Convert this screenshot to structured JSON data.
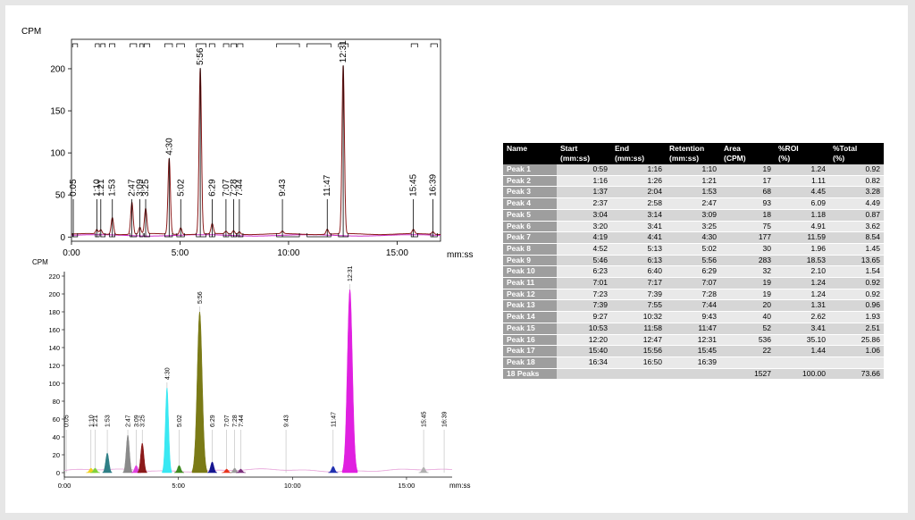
{
  "chart_data": [
    {
      "type": "line",
      "title": "",
      "ylabel": "CPM",
      "xlabel": "mm:ss",
      "xlim": [
        0,
        17
      ],
      "ylim": [
        -5,
        235
      ],
      "xticks": [
        {
          "v": 0,
          "label": "0:00"
        },
        {
          "v": 5,
          "label": "5:00"
        },
        {
          "v": 10,
          "label": "10:00"
        },
        {
          "v": 15,
          "label": "15:00"
        }
      ],
      "yticks": [
        0,
        50,
        100,
        150,
        200
      ],
      "colors": {
        "trace": "#8b1a1a",
        "baseline": "#cc33cc",
        "markers": "#000000"
      },
      "peaks": [
        {
          "label": "0:05",
          "t": 0.083,
          "h": 0
        },
        {
          "label": "1:10",
          "t": 1.167,
          "h": 5
        },
        {
          "label": "1:21",
          "t": 1.35,
          "h": 5
        },
        {
          "label": "1:53",
          "t": 1.883,
          "h": 20
        },
        {
          "label": "2:47",
          "t": 2.783,
          "h": 38
        },
        {
          "label": "3:09",
          "t": 3.15,
          "h": 8
        },
        {
          "label": "3:25",
          "t": 3.417,
          "h": 30
        },
        {
          "label": "4:30",
          "t": 4.5,
          "h": 90
        },
        {
          "label": "5:02",
          "t": 5.033,
          "h": 8
        },
        {
          "label": "5:56",
          "t": 5.933,
          "h": 197
        },
        {
          "label": "6:29",
          "t": 6.483,
          "h": 12
        },
        {
          "label": "7:07",
          "t": 7.117,
          "h": 3
        },
        {
          "label": "7:28",
          "t": 7.467,
          "h": 4
        },
        {
          "label": "7:44",
          "t": 7.733,
          "h": 3
        },
        {
          "label": "9:43",
          "t": 9.717,
          "h": 3
        },
        {
          "label": "11:47",
          "t": 11.783,
          "h": 6
        },
        {
          "label": "12:31",
          "t": 12.517,
          "h": 200
        },
        {
          "label": "15:45",
          "t": 15.75,
          "h": 5
        },
        {
          "label": "16:39",
          "t": 16.65,
          "h": 3
        }
      ]
    },
    {
      "type": "area",
      "title": "",
      "ylabel": "CPM",
      "xlabel": "mm:ss",
      "xlim": [
        0,
        17
      ],
      "ylim": [
        -5,
        225
      ],
      "xticks": [
        {
          "v": 0,
          "label": "0:00"
        },
        {
          "v": 5,
          "label": "5:00"
        },
        {
          "v": 10,
          "label": "10:00"
        },
        {
          "v": 15,
          "label": "15:00"
        }
      ],
      "yticks": [
        0,
        20,
        40,
        60,
        80,
        100,
        120,
        140,
        160,
        180,
        200,
        220
      ],
      "peaks": [
        {
          "label": "0:05",
          "t": 0.083,
          "h": 0,
          "color": "#bbbbbb"
        },
        {
          "label": "1:10",
          "t": 1.167,
          "h": 5,
          "color": "#f2d21e"
        },
        {
          "label": "1:21",
          "t": 1.35,
          "h": 5,
          "color": "#7fd13b"
        },
        {
          "label": "1:53",
          "t": 1.883,
          "h": 22,
          "color": "#2f7f86"
        },
        {
          "label": "2:47",
          "t": 2.783,
          "h": 42,
          "color": "#8a8a8a"
        },
        {
          "label": "3:09",
          "t": 3.15,
          "h": 8,
          "color": "#e040e0"
        },
        {
          "label": "3:25",
          "t": 3.417,
          "h": 33,
          "color": "#8b1a1a"
        },
        {
          "label": "4:30",
          "t": 4.5,
          "h": 95,
          "color": "#39e8f2"
        },
        {
          "label": "5:02",
          "t": 5.033,
          "h": 8,
          "color": "#3e8a1f"
        },
        {
          "label": "5:56",
          "t": 5.933,
          "h": 180,
          "color": "#7a7a16"
        },
        {
          "label": "6:29",
          "t": 6.483,
          "h": 12,
          "color": "#151590"
        },
        {
          "label": "7:07",
          "t": 7.117,
          "h": 4,
          "color": "#e8341c"
        },
        {
          "label": "7:28",
          "t": 7.467,
          "h": 5,
          "color": "#9a9a9a"
        },
        {
          "label": "7:44",
          "t": 7.733,
          "h": 4,
          "color": "#7b2f7b"
        },
        {
          "label": "9:43",
          "t": 9.717,
          "h": 0,
          "color": "#bbbbbb"
        },
        {
          "label": "11:47",
          "t": 11.783,
          "h": 7,
          "color": "#2030b0"
        },
        {
          "label": "12:31",
          "t": 12.517,
          "h": 205,
          "color": "#e020e0"
        },
        {
          "label": "15:45",
          "t": 15.75,
          "h": 6,
          "color": "#b0b0b0"
        },
        {
          "label": "16:39",
          "t": 16.65,
          "h": 0,
          "color": "#bbbbbb"
        }
      ]
    },
    {
      "type": "table",
      "columns": [
        "Name",
        "Start\n(mm:ss)",
        "End\n(mm:ss)",
        "Retention\n(mm:ss)",
        "Area\n(CPM)",
        "%ROI\n(%)",
        "%Total\n(%)"
      ],
      "rows": [
        [
          "Peak 1",
          "0:59",
          "1:16",
          "1:10",
          "19",
          "1.24",
          "0.92"
        ],
        [
          "Peak 2",
          "1:16",
          "1:26",
          "1:21",
          "17",
          "1.11",
          "0.82"
        ],
        [
          "Peak 3",
          "1:37",
          "2:04",
          "1:53",
          "68",
          "4.45",
          "3.28"
        ],
        [
          "Peak 4",
          "2:37",
          "2:58",
          "2:47",
          "93",
          "6.09",
          "4.49"
        ],
        [
          "Peak 5",
          "3:04",
          "3:14",
          "3:09",
          "18",
          "1.18",
          "0.87"
        ],
        [
          "Peak 6",
          "3:20",
          "3:41",
          "3:25",
          "75",
          "4.91",
          "3.62"
        ],
        [
          "Peak 7",
          "4:19",
          "4:41",
          "4:30",
          "177",
          "11.59",
          "8.54"
        ],
        [
          "Peak 8",
          "4:52",
          "5:13",
          "5:02",
          "30",
          "1.96",
          "1.45"
        ],
        [
          "Peak 9",
          "5:46",
          "6:13",
          "5:56",
          "283",
          "18.53",
          "13.65"
        ],
        [
          "Peak 10",
          "6:23",
          "6:40",
          "6:29",
          "32",
          "2.10",
          "1.54"
        ],
        [
          "Peak 11",
          "7:01",
          "7:17",
          "7:07",
          "19",
          "1.24",
          "0.92"
        ],
        [
          "Peak 12",
          "7:23",
          "7:39",
          "7:28",
          "19",
          "1.24",
          "0.92"
        ],
        [
          "Peak 13",
          "7:39",
          "7:55",
          "7:44",
          "20",
          "1.31",
          "0.96"
        ],
        [
          "Peak 14",
          "9:27",
          "10:32",
          "9:43",
          "40",
          "2.62",
          "1.93"
        ],
        [
          "Peak 15",
          "10:53",
          "11:58",
          "11:47",
          "52",
          "3.41",
          "2.51"
        ],
        [
          "Peak 16",
          "12:20",
          "12:47",
          "12:31",
          "536",
          "35.10",
          "25.86"
        ],
        [
          "Peak 17",
          "15:40",
          "15:56",
          "15:45",
          "22",
          "1.44",
          "1.06"
        ],
        [
          "Peak 18",
          "16:34",
          "16:50",
          "16:39",
          "",
          "",
          ""
        ],
        [
          "18 Peaks",
          "",
          "",
          "",
          "1527",
          "100.00",
          "73.66"
        ]
      ]
    }
  ]
}
